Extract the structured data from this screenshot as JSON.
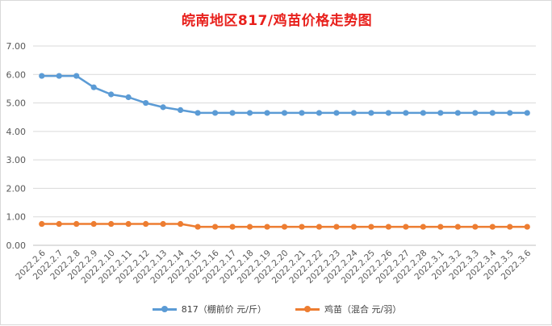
{
  "chart_data": {
    "type": "line",
    "title": "皖南地区817/鸡苗价格走势图",
    "categories": [
      "2022.2.6",
      "2022.2.7",
      "2022.2.8",
      "2022.2.9",
      "2022.2.10",
      "2022.2.11",
      "2022.2.12",
      "2022.2.13",
      "2022.2.14",
      "2022.2.15",
      "2022.2.16",
      "2022.2.17",
      "2022.2.18",
      "2022.2.19",
      "2022.2.20",
      "2022.2.21",
      "2022.2.22",
      "2022.2.23",
      "2022.2.24",
      "2022.2.25",
      "2022.2.26",
      "2022.2.27",
      "2022.2.28",
      "2022.3.1",
      "2022.3.2",
      "2022.3.3",
      "2022.3.4",
      "2022.3.5",
      "2022.3.6"
    ],
    "series": [
      {
        "name": "817（棚前价 元/斤）",
        "color": "#5b9bd5",
        "values": [
          5.95,
          5.95,
          5.95,
          5.55,
          5.3,
          5.2,
          5.0,
          4.85,
          4.75,
          4.65,
          4.65,
          4.65,
          4.65,
          4.65,
          4.65,
          4.65,
          4.65,
          4.65,
          4.65,
          4.65,
          4.65,
          4.65,
          4.65,
          4.65,
          4.65,
          4.65,
          4.65,
          4.65,
          4.65
        ]
      },
      {
        "name": "鸡苗（混合 元/羽）",
        "color": "#ed7d31",
        "values": [
          0.75,
          0.75,
          0.75,
          0.75,
          0.75,
          0.75,
          0.75,
          0.75,
          0.75,
          0.65,
          0.65,
          0.65,
          0.65,
          0.65,
          0.65,
          0.65,
          0.65,
          0.65,
          0.65,
          0.65,
          0.65,
          0.65,
          0.65,
          0.65,
          0.65,
          0.65,
          0.65,
          0.65,
          0.65
        ]
      }
    ],
    "yticks": [
      "0.00",
      "1.00",
      "2.00",
      "3.00",
      "4.00",
      "5.00",
      "6.00",
      "7.00"
    ],
    "ylim": [
      0,
      7
    ],
    "grid": true,
    "legend": "bottom"
  }
}
